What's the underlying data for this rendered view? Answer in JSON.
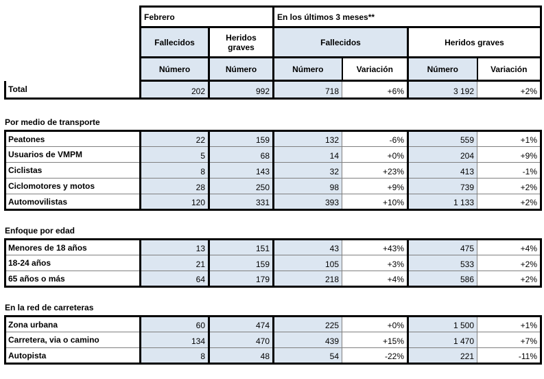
{
  "colors": {
    "header_fill": "#dce6f1",
    "border_strong": "#000000",
    "border_light": "#7f7f7f"
  },
  "header": {
    "febrero": "Febrero",
    "ultimos_3_meses": "En los últimos 3 meses**",
    "fallecidos": "Fallecidos",
    "heridos_graves": "Heridos graves",
    "numero": "Número",
    "variacion": "Variación"
  },
  "total_row": {
    "label": "Total",
    "values": [
      "202",
      "992",
      "718",
      "+6%",
      "3 192",
      "+2%"
    ]
  },
  "sections": [
    {
      "title": "Por medio de transporte",
      "rows": [
        {
          "label": "Peatones",
          "values": [
            "22",
            "159",
            "132",
            "-6%",
            "559",
            "+1%"
          ]
        },
        {
          "label": "Usuarios de VMPM",
          "values": [
            "5",
            "68",
            "14",
            "+0%",
            "204",
            "+9%"
          ]
        },
        {
          "label": "Ciclistas",
          "values": [
            "8",
            "143",
            "32",
            "+23%",
            "413",
            "-1%"
          ]
        },
        {
          "label": "Ciclomotores y motos",
          "values": [
            "28",
            "250",
            "98",
            "+9%",
            "739",
            "+2%"
          ]
        },
        {
          "label": "Automovilistas",
          "values": [
            "120",
            "331",
            "393",
            "+10%",
            "1 133",
            "+2%"
          ]
        }
      ]
    },
    {
      "title": "Enfoque por edad",
      "rows": [
        {
          "label": "Menores de 18 años",
          "values": [
            "13",
            "151",
            "43",
            "+43%",
            "475",
            "+4%"
          ]
        },
        {
          "label": "18-24 años",
          "values": [
            "21",
            "159",
            "105",
            "+3%",
            "533",
            "+2%"
          ]
        },
        {
          "label": "65 años o más",
          "values": [
            "64",
            "179",
            "218",
            "+4%",
            "586",
            "+2%"
          ]
        }
      ]
    },
    {
      "title": "En la red de carreteras",
      "rows": [
        {
          "label": "Zona urbana",
          "values": [
            "60",
            "474",
            "225",
            "+0%",
            "1 500",
            "+1%"
          ]
        },
        {
          "label": "Carretera, via o camino",
          "values": [
            "134",
            "470",
            "439",
            "+15%",
            "1 470",
            "+7%"
          ]
        },
        {
          "label": "Autopista",
          "values": [
            "8",
            "48",
            "54",
            "-22%",
            "221",
            "-11%"
          ]
        }
      ]
    }
  ]
}
